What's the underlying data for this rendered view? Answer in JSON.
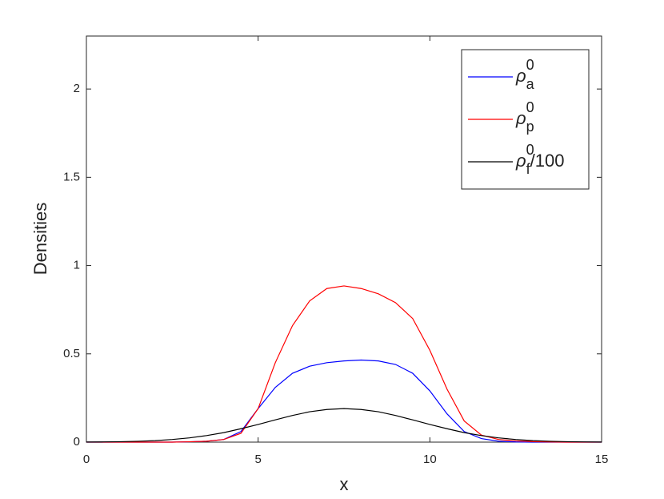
{
  "chart_data": {
    "type": "line",
    "x_label": "x",
    "y_label": "Densities",
    "xlim": [
      0,
      15
    ],
    "xticks": [
      0,
      5,
      10,
      15
    ],
    "ylim": [
      0,
      2.3
    ],
    "yticks": [
      0,
      0.5,
      1,
      1.5,
      2
    ],
    "grid": false,
    "legend_position": "top-right",
    "x": [
      0,
      0.5,
      1,
      1.5,
      2,
      2.5,
      3,
      3.5,
      4,
      4.5,
      5,
      5.5,
      6,
      6.5,
      7,
      7.5,
      8,
      8.5,
      9,
      9.5,
      10,
      10.5,
      11,
      11.5,
      12,
      12.5,
      13,
      13.5,
      14,
      14.5,
      15
    ],
    "series": [
      {
        "name": "ρ",
        "name_sub": "a",
        "name_sup": "0",
        "color": "#0000ff",
        "values": [
          0,
          0,
          0,
          0,
          0,
          0,
          0.002,
          0.005,
          0.015,
          0.06,
          0.19,
          0.31,
          0.39,
          0.43,
          0.45,
          0.46,
          0.465,
          0.46,
          0.44,
          0.39,
          0.29,
          0.16,
          0.06,
          0.02,
          0.005,
          0.001,
          0,
          0,
          0,
          0,
          0
        ]
      },
      {
        "name": "ρ",
        "name_sub": "p",
        "name_sup": "0",
        "color": "#ff0000",
        "values": [
          0,
          0,
          0,
          0,
          0,
          0,
          0.002,
          0.005,
          0.015,
          0.05,
          0.19,
          0.45,
          0.66,
          0.8,
          0.87,
          0.885,
          0.87,
          0.84,
          0.79,
          0.7,
          0.52,
          0.3,
          0.12,
          0.04,
          0.015,
          0.007,
          0.003,
          0.001,
          0,
          0,
          0
        ]
      },
      {
        "name": "ρ",
        "name_sub": "f",
        "name_sup": "0",
        "name_suffix": "/100",
        "color": "#000000",
        "values": [
          0.0006,
          0.0013,
          0.0025,
          0.0048,
          0.0086,
          0.015,
          0.024,
          0.037,
          0.054,
          0.076,
          0.1,
          0.126,
          0.151,
          0.172,
          0.185,
          0.19,
          0.185,
          0.172,
          0.151,
          0.126,
          0.1,
          0.076,
          0.054,
          0.037,
          0.024,
          0.015,
          0.0086,
          0.0048,
          0.0025,
          0.0013,
          0.0006
        ]
      }
    ]
  }
}
